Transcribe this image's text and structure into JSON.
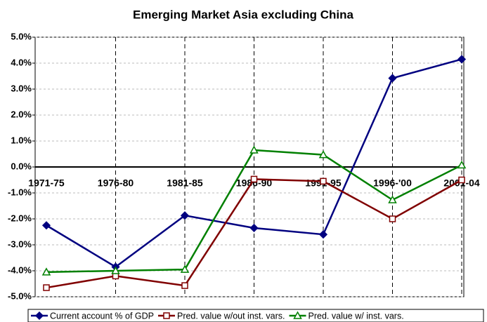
{
  "chart_data": {
    "type": "line",
    "title": "Emerging Market Asia excluding China",
    "categories": [
      "1971-75",
      "1976-80",
      "1981-85",
      "1986-90",
      "1991-95",
      "1996-'00",
      "2001-04"
    ],
    "series": [
      {
        "name": "Current account % of GDP",
        "color": "#000080",
        "marker": "diamond",
        "values": [
          -2.25,
          -3.85,
          -1.87,
          -2.35,
          -2.6,
          3.42,
          4.15
        ]
      },
      {
        "name": "Pred. value w/out inst. vars.",
        "color": "#800000",
        "marker": "square",
        "values": [
          -4.65,
          -4.2,
          -4.57,
          -0.47,
          -0.55,
          -2.0,
          -0.5
        ]
      },
      {
        "name": "Pred. value w/ inst. vars.",
        "color": "#008000",
        "marker": "triangle",
        "values": [
          -4.05,
          -4.0,
          -3.95,
          0.65,
          0.47,
          -1.27,
          0.07
        ]
      }
    ],
    "ylim": [
      -5,
      5
    ],
    "yticks": [
      {
        "value": -5,
        "label": "-5.0%"
      },
      {
        "value": -4,
        "label": "-4.0%"
      },
      {
        "value": -3,
        "label": "-3.0%"
      },
      {
        "value": -2,
        "label": "-2.0%"
      },
      {
        "value": -1,
        "label": "-1.0%"
      },
      {
        "value": 0,
        "label": "0.0%"
      },
      {
        "value": 1,
        "label": "1.0%"
      },
      {
        "value": 2,
        "label": "2.0%"
      },
      {
        "value": 3,
        "label": "3.0%"
      },
      {
        "value": 4,
        "label": "4.0%"
      },
      {
        "value": 5,
        "label": "5.0%"
      }
    ],
    "grid": true,
    "legend": "bottom"
  }
}
